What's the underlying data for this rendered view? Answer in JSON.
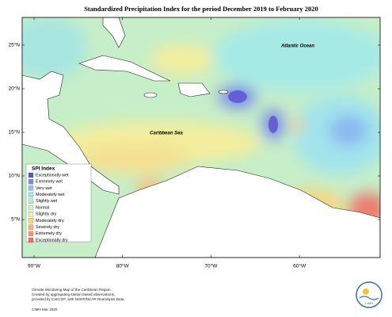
{
  "title": "Standardized Precipitation Index for the period December 2019 to February 2020",
  "lat_labels": [
    "25°N",
    "20°N",
    "15°N",
    "10°N",
    "5°N"
  ],
  "lon_labels": [
    "90°W",
    "80°W",
    "70°W",
    "60°W"
  ],
  "place_labels": [
    "Atlantic Ocean",
    "Caribbean Sea"
  ],
  "legend": {
    "title": "SPI Index",
    "items": [
      {
        "label": "Exceptionally wet",
        "color": "#5b4fd0"
      },
      {
        "label": "Extremely wet",
        "color": "#7090e6"
      },
      {
        "label": "Very wet",
        "color": "#8cc8f2"
      },
      {
        "label": "Moderately wet",
        "color": "#a2e8e8"
      },
      {
        "label": "Slightly wet",
        "color": "#b8f0d6"
      },
      {
        "label": "Normal",
        "color": "#d8f4c2"
      },
      {
        "label": "Slightly dry",
        "color": "#f4f0a2"
      },
      {
        "label": "Moderately dry",
        "color": "#f4d882"
      },
      {
        "label": "Severely dry",
        "color": "#f4b872"
      },
      {
        "label": "Extremely dry",
        "color": "#f49a72"
      },
      {
        "label": "Exceptionally dry",
        "color": "#ee6a6a"
      }
    ]
  },
  "footer": {
    "note": [
      "Climate Monitoring Map of the Caribbean Region.",
      "Created by aggregating station based observations,",
      "provided by CariCOF, with NCEP/NCAR Reanalysis Data."
    ],
    "credit": "CIMH Mar 2020",
    "logo": "CIMH"
  }
}
